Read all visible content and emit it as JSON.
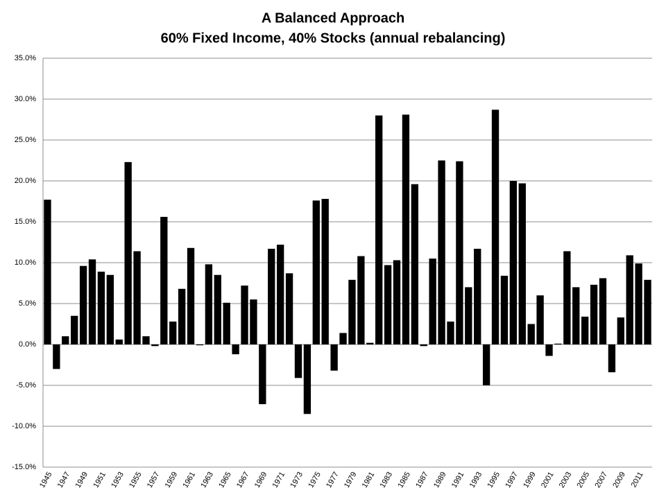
{
  "chart_data": {
    "type": "bar",
    "title": "A Balanced Approach",
    "subtitle": "60% Fixed Income, 40% Stocks (annual rebalancing)",
    "categories": [
      "1945",
      null,
      "1947",
      null,
      "1949",
      null,
      "1951",
      null,
      "1953",
      null,
      "1955",
      null,
      "1957",
      null,
      "1959",
      null,
      "1961",
      null,
      "1963",
      null,
      "1965",
      null,
      "1967",
      null,
      "1969",
      null,
      "1971",
      null,
      "1973",
      null,
      "1975",
      null,
      "1977",
      null,
      "1979",
      null,
      "1981",
      null,
      "1983",
      null,
      "1985",
      null,
      "1987",
      null,
      "1989",
      null,
      "1991",
      null,
      "1993",
      null,
      "1995",
      null,
      "1997",
      null,
      "1999",
      null,
      "2001",
      null,
      "2003",
      null,
      "2005",
      null,
      "2007",
      null,
      "2009",
      null,
      "2011",
      null
    ],
    "values": [
      17.7,
      -3.0,
      1.0,
      3.5,
      9.6,
      10.4,
      8.9,
      8.5,
      0.6,
      22.3,
      11.4,
      1.0,
      -0.2,
      15.6,
      2.8,
      6.8,
      11.8,
      -0.1,
      9.8,
      8.5,
      5.1,
      -1.2,
      7.2,
      5.5,
      -7.3,
      11.7,
      12.2,
      8.7,
      -4.1,
      -8.5,
      17.6,
      17.8,
      -3.2,
      1.4,
      7.9,
      10.8,
      0.2,
      28.0,
      9.7,
      10.3,
      28.1,
      19.6,
      -0.2,
      10.5,
      22.5,
      2.8,
      22.4,
      7.0,
      11.7,
      -5.0,
      28.7,
      8.4,
      20.0,
      19.7,
      2.5,
      6.0,
      -1.4,
      0.1,
      11.4,
      7.0,
      3.4,
      7.3,
      8.1,
      -3.4,
      3.3,
      10.9,
      9.9,
      7.9
    ],
    "color": "#000000",
    "ylim": [
      -15,
      35
    ],
    "yticks": [
      {
        "value": -15,
        "label": "-15.0%"
      },
      {
        "value": -10,
        "label": "-10.0%"
      },
      {
        "value": -5,
        "label": "-5.0%"
      },
      {
        "value": 0,
        "label": "0.0%"
      },
      {
        "value": 5,
        "label": "5.0%"
      },
      {
        "value": 10,
        "label": "10.0%"
      },
      {
        "value": 15,
        "label": "15.0%"
      },
      {
        "value": 20,
        "label": "20.0%"
      },
      {
        "value": 25,
        "label": "25.0%"
      },
      {
        "value": 30,
        "label": "30.0%"
      },
      {
        "value": 35,
        "label": "35.0%"
      }
    ],
    "grid": true
  }
}
